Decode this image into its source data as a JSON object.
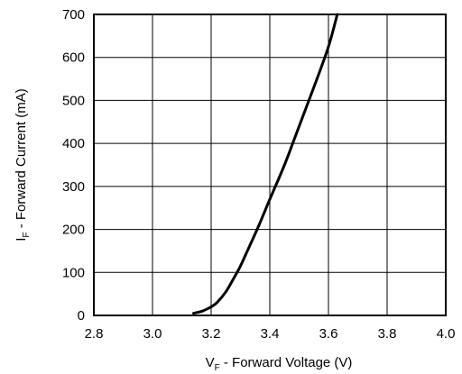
{
  "chart_data": {
    "type": "line",
    "x_axis": {
      "label_main": "V",
      "label_sub": "F",
      "label_rest": " - Forward Voltage (V)",
      "range": [
        2.8,
        4.0
      ],
      "ticks": [
        "2.8",
        "3.0",
        "3.2",
        "3.4",
        "3.6",
        "3.8",
        "4.0"
      ]
    },
    "y_axis": {
      "label_main": "I",
      "label_sub": "F",
      "label_rest": " - Forward Current (mA)",
      "range": [
        0,
        700
      ],
      "ticks": [
        "0",
        "100",
        "200",
        "300",
        "400",
        "500",
        "600",
        "700"
      ]
    },
    "grid": true,
    "series": [
      {
        "x": [
          3.14,
          3.17,
          3.2,
          3.22,
          3.25,
          3.28,
          3.3,
          3.33,
          3.36,
          3.4,
          3.45,
          3.5,
          3.55,
          3.6,
          3.63
        ],
        "y": [
          5,
          10,
          20,
          30,
          55,
          90,
          115,
          160,
          205,
          270,
          350,
          440,
          530,
          625,
          700
        ]
      }
    ],
    "colors": {
      "line": "#000000",
      "grid": "#000000"
    }
  }
}
